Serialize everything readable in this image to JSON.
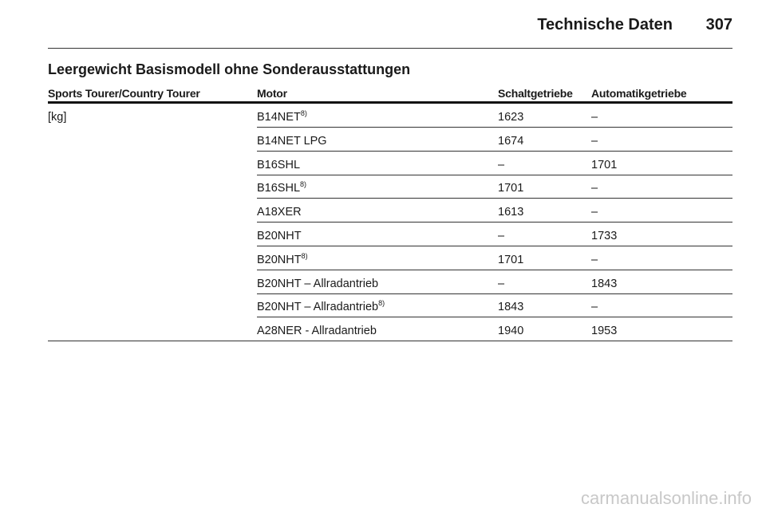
{
  "header": {
    "title": "Technische Daten",
    "page": "307"
  },
  "section": {
    "title": "Leergewicht Basismodell ohne Sonderausstattungen"
  },
  "table": {
    "columns": [
      "Sports Tourer/Country Tourer",
      "Motor",
      "Schaltgetriebe",
      "Automatikgetriebe"
    ],
    "unit": "[kg]",
    "rows": [
      {
        "motor": "B14NET",
        "footnote": "8)",
        "manual": "1623",
        "automatic": "–"
      },
      {
        "motor": "B14NET LPG",
        "manual": "1674",
        "automatic": "–"
      },
      {
        "motor": "B16SHL",
        "manual": "–",
        "automatic": "1701"
      },
      {
        "motor": "B16SHL",
        "footnote": "8)",
        "manual": "1701",
        "automatic": "–"
      },
      {
        "motor": "A18XER",
        "manual": "1613",
        "automatic": "–"
      },
      {
        "motor": "B20NHT",
        "manual": "–",
        "automatic": "1733"
      },
      {
        "motor": "B20NHT",
        "footnote": "8)",
        "manual": "1701",
        "automatic": "–"
      },
      {
        "motor": "B20NHT – Allradantrieb",
        "manual": "–",
        "automatic": "1843"
      },
      {
        "motor": "B20NHT – Allradantrieb",
        "footnote": "8)",
        "manual": "1843",
        "automatic": "–"
      },
      {
        "motor": "A28NER - Allradantrieb",
        "manual": "1940",
        "automatic": "1953"
      }
    ]
  },
  "watermark": "carmanualsonline.info"
}
